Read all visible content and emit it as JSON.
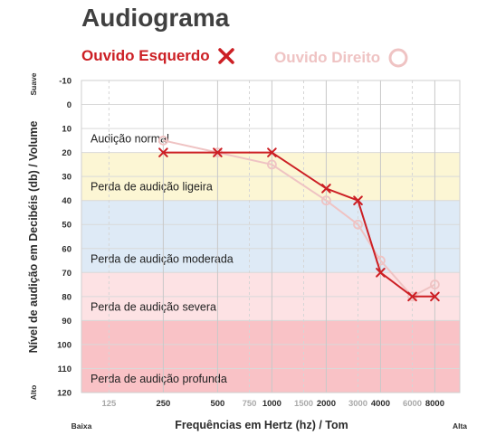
{
  "title": "Audiograma",
  "legend": {
    "left": {
      "label": "Ouvido Esquerdo",
      "marker": "x-icon",
      "color": "#cc1f24"
    },
    "right": {
      "label": "Ouvido Direito",
      "marker": "circle-icon",
      "color": "#efc3c3"
    }
  },
  "chart_data": {
    "type": "line",
    "title": "Audiograma",
    "xlabel": "Frequências em Hertz (hz) / Tom",
    "ylabel": "Nível de audição em Decibéis (db) / Volume",
    "x_scale": "log2",
    "x_ticks": [
      {
        "value": 125,
        "label": "125",
        "minor": true
      },
      {
        "value": 250,
        "label": "250",
        "minor": false
      },
      {
        "value": 500,
        "label": "500",
        "minor": false
      },
      {
        "value": 750,
        "label": "750",
        "minor": true
      },
      {
        "value": 1000,
        "label": "1000",
        "minor": false
      },
      {
        "value": 1500,
        "label": "1500",
        "minor": true
      },
      {
        "value": 2000,
        "label": "2000",
        "minor": false
      },
      {
        "value": 3000,
        "label": "3000",
        "minor": true
      },
      {
        "value": 4000,
        "label": "4000",
        "minor": false
      },
      {
        "value": 6000,
        "label": "6000",
        "minor": true
      },
      {
        "value": 8000,
        "label": "8000",
        "minor": false
      }
    ],
    "y_ticks": [
      -10,
      0,
      10,
      20,
      30,
      40,
      50,
      60,
      70,
      80,
      90,
      100,
      110,
      120
    ],
    "ylim": [
      -10,
      120
    ],
    "y_inverted": true,
    "y_end_labels": {
      "top": "Suave",
      "bottom": "Alto"
    },
    "x_end_labels": {
      "left": "Baixa",
      "right": "Alta"
    },
    "bands": [
      {
        "label": "Audição normal",
        "from": -10,
        "to": 20,
        "color": "#ffffff"
      },
      {
        "label": "Perda de audição ligeira",
        "from": 20,
        "to": 40,
        "color": "#fcf6d4"
      },
      {
        "label": "Perda de audição moderada",
        "from": 40,
        "to": 70,
        "color": "#deeaf6"
      },
      {
        "label": "Perda de audição severa",
        "from": 70,
        "to": 90,
        "color": "#fde2e4"
      },
      {
        "label": "Perda de audição profunda",
        "from": 90,
        "to": 120,
        "color": "#f9c2c6"
      }
    ],
    "series": [
      {
        "name": "Ouvido Direito",
        "marker": "circle",
        "color": "#efc3c3",
        "points": [
          {
            "x": 250,
            "y": 15
          },
          {
            "x": 500,
            "y": 20
          },
          {
            "x": 1000,
            "y": 25
          },
          {
            "x": 2000,
            "y": 40
          },
          {
            "x": 3000,
            "y": 50
          },
          {
            "x": 4000,
            "y": 65
          },
          {
            "x": 6000,
            "y": 80
          },
          {
            "x": 8000,
            "y": 75
          }
        ]
      },
      {
        "name": "Ouvido Esquerdo",
        "marker": "x",
        "color": "#cc1f24",
        "points": [
          {
            "x": 250,
            "y": 20
          },
          {
            "x": 500,
            "y": 20
          },
          {
            "x": 1000,
            "y": 20
          },
          {
            "x": 2000,
            "y": 35
          },
          {
            "x": 3000,
            "y": 40
          },
          {
            "x": 4000,
            "y": 70
          },
          {
            "x": 6000,
            "y": 80
          },
          {
            "x": 8000,
            "y": 80
          }
        ]
      }
    ]
  }
}
